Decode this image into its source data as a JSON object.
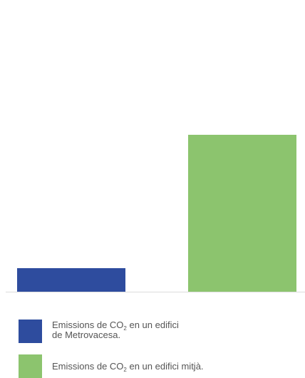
{
  "chart_data": {
    "type": "bar",
    "categories": [
      "Emissions de CO2 en un edifici de Metrovacesa.",
      "Emissions de CO2 en un edifici mitjà."
    ],
    "values": [
      15,
      100
    ],
    "ylim": [
      0,
      100
    ],
    "colors": [
      "#2e4c9e",
      "#8cc46e"
    ],
    "axis_color": "#dddddd",
    "grid": false,
    "legend_position": "bottom"
  },
  "legend": [
    {
      "color": "#2e4c9e",
      "line1_pre": "Emissions de CO",
      "subscript": "2",
      "line1_post": " en un edifici",
      "line2": "de Metrovacesa."
    },
    {
      "color": "#8cc46e",
      "line1_pre": "Emissions de CO",
      "subscript": "2",
      "line1_post": " en un edifici mitjà.",
      "line2": ""
    }
  ]
}
